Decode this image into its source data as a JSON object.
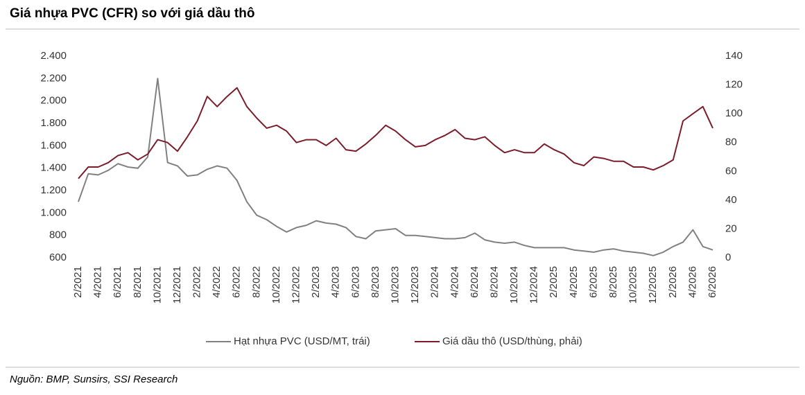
{
  "chart_data": {
    "type": "line",
    "title": "Giá nhựa PVC (CFR) so với giá dầu thô",
    "source": "Nguồn: BMP, Sunsirs, SSI Research",
    "categories": [
      "2/2021",
      null,
      "4/2021",
      null,
      "6/2021",
      null,
      "8/2021",
      null,
      "10/2021",
      null,
      "12/2021",
      null,
      "2/2022",
      null,
      "4/2022",
      null,
      "6/2022",
      null,
      "8/2022",
      null,
      "10/2022",
      null,
      "12/2022",
      null,
      "2/2023",
      null,
      "4/2023",
      null,
      "6/2023",
      null,
      "8/2023",
      null,
      "10/2023",
      null,
      "12/2023",
      null,
      "2/2024",
      null,
      "4/2024",
      null,
      "6/2024",
      null,
      "8/2024",
      null,
      "10/2024",
      null,
      "12/2024",
      null,
      "2/2025",
      null,
      "4/2025",
      null,
      "6/2025",
      null,
      "8/2025",
      null,
      "10/2025",
      null,
      "12/2025",
      null,
      "2/2026",
      null,
      "4/2026",
      null,
      "6/2026"
    ],
    "series": [
      {
        "name": "Hạt nhựa PVC (USD/MT, trái)",
        "color": "#808080",
        "values": [
          1100,
          1350,
          1340,
          1380,
          1440,
          1410,
          1400,
          1500,
          2200,
          1450,
          1420,
          1330,
          1340,
          1390,
          1420,
          1400,
          1290,
          1100,
          980,
          940,
          880,
          830,
          870,
          890,
          930,
          910,
          900,
          870,
          790,
          770,
          840,
          850,
          860,
          800,
          800,
          790,
          780,
          770,
          770,
          780,
          820,
          760,
          740,
          730,
          740,
          710,
          690,
          690,
          690,
          690,
          670,
          660,
          650,
          670,
          680,
          660,
          650,
          640,
          620,
          650,
          700,
          740,
          850,
          700,
          670
        ]
      },
      {
        "name": "Giá dầu thô (USD/thùng, phải)",
        "color": "#7b1c2a",
        "axis": "y2",
        "values": [
          55,
          63,
          63,
          66,
          71,
          73,
          68,
          72,
          82,
          80,
          74,
          84,
          95,
          112,
          105,
          112,
          118,
          105,
          97,
          90,
          92,
          88,
          80,
          82,
          82,
          78,
          83,
          75,
          74,
          79,
          85,
          92,
          88,
          82,
          77,
          78,
          82,
          85,
          89,
          83,
          82,
          84,
          78,
          73,
          75,
          73,
          73,
          79,
          75,
          72,
          66,
          64,
          70,
          69,
          67,
          67,
          63,
          63,
          61,
          64,
          68,
          95,
          100,
          105,
          90
        ]
      }
    ],
    "ylim": [
      600,
      2400
    ],
    "yticks": [
      600,
      800,
      {
        "value": 1000,
        "label": "1.000"
      },
      {
        "value": 1200,
        "label": "1.200"
      },
      {
        "value": 1400,
        "label": "1.400"
      },
      {
        "value": 1600,
        "label": "1.600"
      },
      {
        "value": 1800,
        "label": "1.800"
      },
      {
        "value": 2000,
        "label": "2.000"
      },
      {
        "value": 2200,
        "label": "2.200"
      },
      {
        "value": 2400,
        "label": "2.400"
      }
    ],
    "y2lim": [
      0,
      140
    ],
    "y2ticks": [
      0,
      20,
      40,
      60,
      80,
      100,
      120,
      140
    ],
    "grid": false
  }
}
